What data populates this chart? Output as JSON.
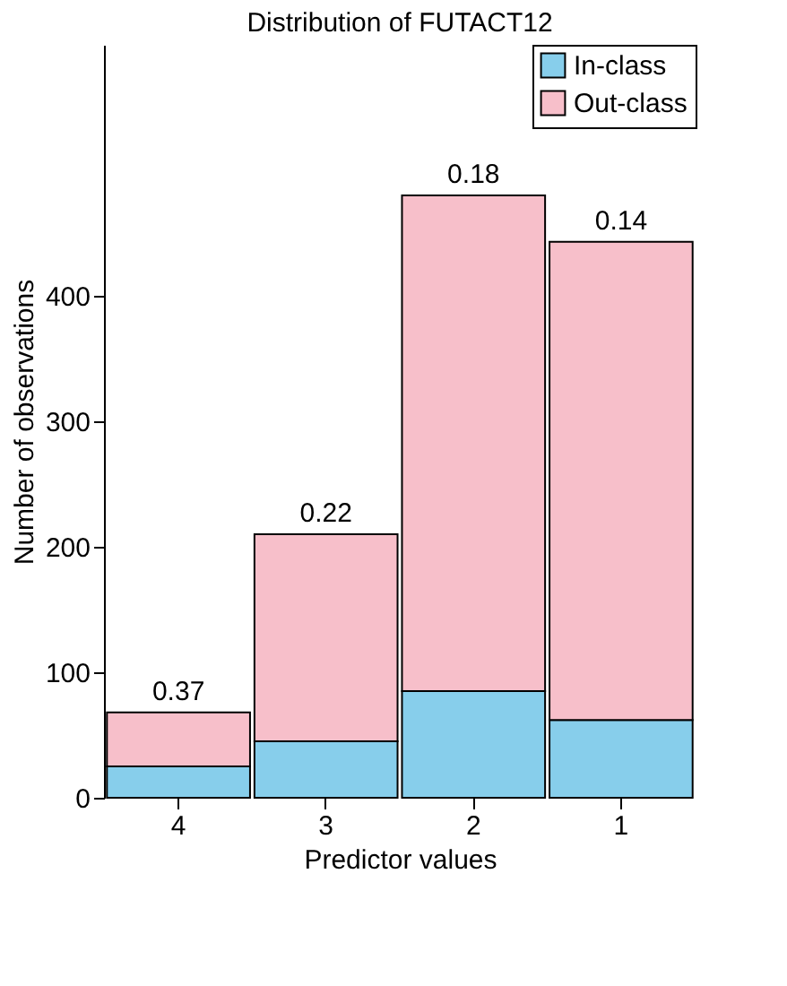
{
  "chart_data": {
    "type": "bar",
    "title": "Distribution of FUTACT12",
    "xlabel": "Predictor values",
    "ylabel": "Number of observations",
    "categories": [
      "4",
      "3",
      "2",
      "1"
    ],
    "stacked": true,
    "series": [
      {
        "name": "In-class",
        "color": "#87ceeb",
        "values": [
          25,
          45,
          85,
          62
        ]
      },
      {
        "name": "Out-class",
        "color": "#f7bfca",
        "values": [
          43,
          165,
          395,
          381
        ]
      }
    ],
    "ylim": [
      0,
      600
    ],
    "yticks": [
      0,
      100,
      200,
      300,
      400
    ],
    "grid": false,
    "legend": "top right",
    "annotations": [
      {
        "text": "0.37",
        "x": "4",
        "y": 68
      },
      {
        "text": "0.22",
        "x": "3",
        "y": 210
      },
      {
        "text": "0.18",
        "x": "2",
        "y": 480
      },
      {
        "text": "0.14",
        "x": "1",
        "y": 443
      }
    ]
  }
}
